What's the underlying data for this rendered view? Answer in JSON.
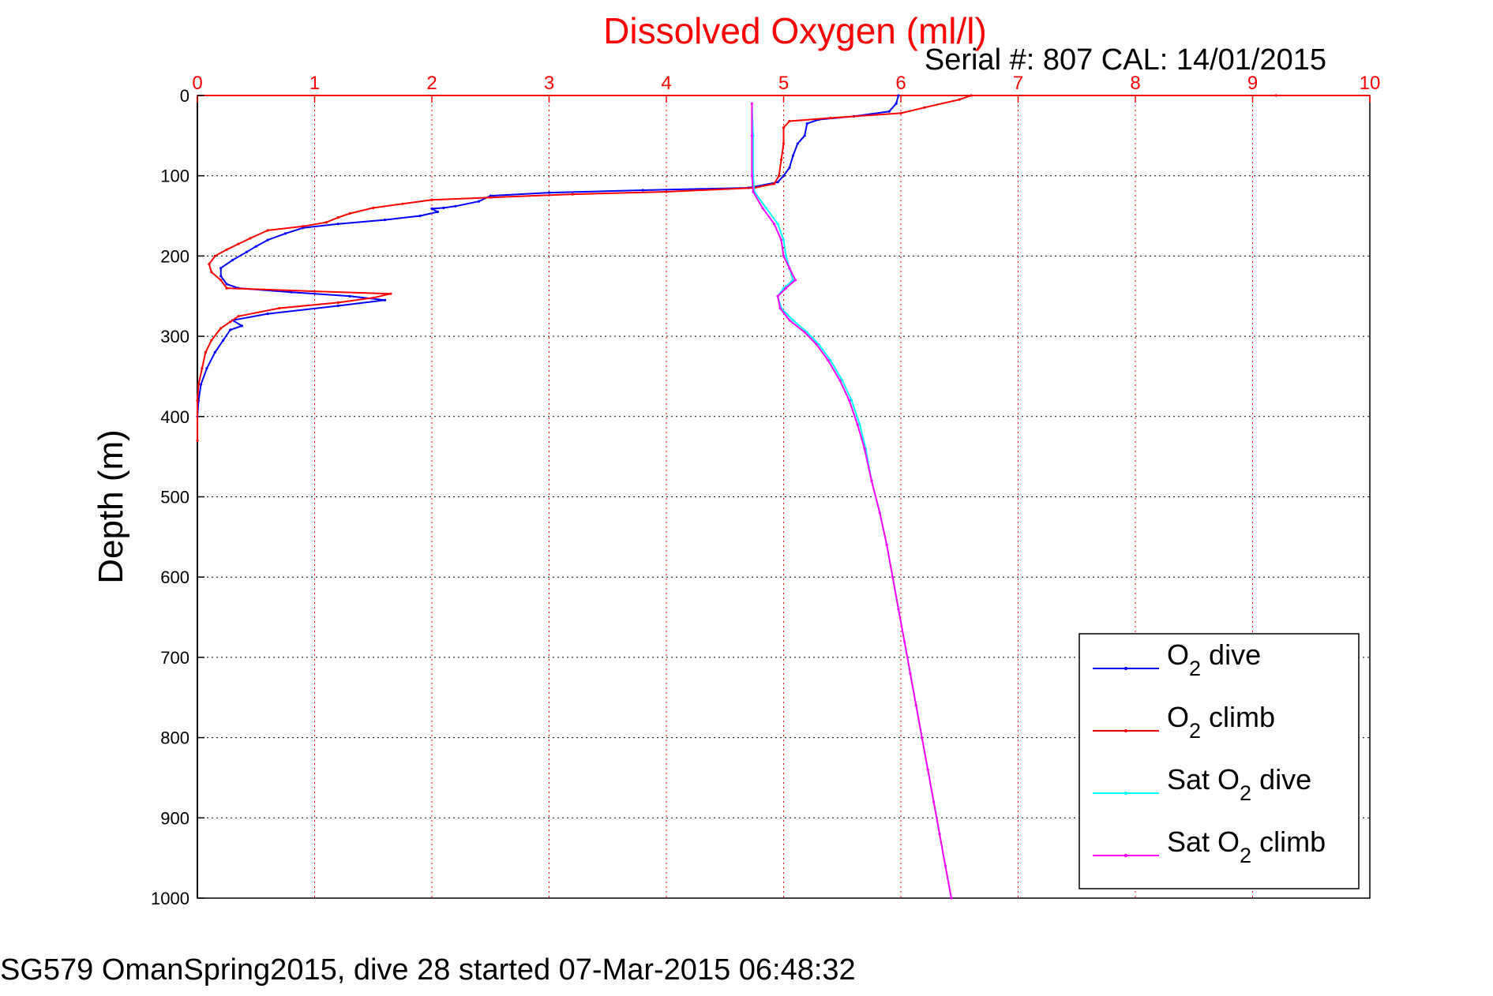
{
  "chart_data": {
    "type": "line",
    "title": "Dissolved Oxygen (ml/l)",
    "subtitle": "Serial #: 807  CAL: 14/01/2015",
    "ylabel": "Depth (m)",
    "xlim": [
      0,
      10
    ],
    "ylim": [
      0,
      1000
    ],
    "y_reversed": true,
    "x_ticks": [
      "0",
      "1",
      "2",
      "3",
      "4",
      "5",
      "6",
      "7",
      "8",
      "9",
      "10"
    ],
    "y_ticks": [
      "0",
      "100",
      "200",
      "300",
      "400",
      "500",
      "600",
      "700",
      "800",
      "900",
      "1000"
    ],
    "grid": true,
    "legend_position": "bottom-right",
    "colors": {
      "title": "#ff0000",
      "x_tick_labels": "#ff0000",
      "axis": "#ff0000"
    },
    "series": [
      {
        "name": "O2 dive",
        "legend": {
          "base": "O",
          "sub": "2",
          "rest": " dive"
        },
        "color": "#0000ff",
        "points": [
          [
            5.98,
            0
          ],
          [
            5.96,
            10
          ],
          [
            5.9,
            20
          ],
          [
            5.6,
            26
          ],
          [
            5.3,
            30
          ],
          [
            5.2,
            35
          ],
          [
            5.18,
            50
          ],
          [
            5.12,
            60
          ],
          [
            5.08,
            75
          ],
          [
            5.05,
            90
          ],
          [
            5.0,
            100
          ],
          [
            4.95,
            108
          ],
          [
            4.7,
            115
          ],
          [
            3.8,
            118
          ],
          [
            3.0,
            121
          ],
          [
            2.5,
            125
          ],
          [
            2.4,
            132
          ],
          [
            2.2,
            138
          ],
          [
            2.1,
            140
          ],
          [
            2.0,
            141
          ],
          [
            2.05,
            145
          ],
          [
            1.9,
            150
          ],
          [
            1.6,
            155
          ],
          [
            1.2,
            160
          ],
          [
            0.9,
            165
          ],
          [
            0.75,
            172
          ],
          [
            0.6,
            180
          ],
          [
            0.5,
            188
          ],
          [
            0.42,
            195
          ],
          [
            0.3,
            205
          ],
          [
            0.2,
            215
          ],
          [
            0.2,
            225
          ],
          [
            0.25,
            235
          ],
          [
            0.35,
            240
          ],
          [
            0.8,
            245
          ],
          [
            1.3,
            250
          ],
          [
            1.6,
            255
          ],
          [
            1.2,
            262
          ],
          [
            0.6,
            272
          ],
          [
            0.3,
            280
          ],
          [
            0.38,
            287
          ],
          [
            0.28,
            292
          ],
          [
            0.22,
            305
          ],
          [
            0.15,
            320
          ],
          [
            0.08,
            340
          ],
          [
            0.03,
            360
          ],
          [
            0.01,
            380
          ],
          [
            0.0,
            400
          ],
          [
            0.0,
            430
          ]
        ]
      },
      {
        "name": "O2 climb",
        "legend": {
          "base": "O",
          "sub": "2",
          "rest": " climb"
        },
        "color": "#ff0000",
        "points": [
          [
            9.2,
            0
          ],
          [
            6.6,
            0
          ],
          [
            6.5,
            5
          ],
          [
            6.2,
            15
          ],
          [
            6.0,
            22
          ],
          [
            5.4,
            28
          ],
          [
            5.05,
            32
          ],
          [
            5.0,
            40
          ],
          [
            5.0,
            60
          ],
          [
            4.98,
            80
          ],
          [
            4.96,
            100
          ],
          [
            4.92,
            110
          ],
          [
            4.75,
            115
          ],
          [
            4.0,
            120
          ],
          [
            3.2,
            123
          ],
          [
            2.5,
            127
          ],
          [
            2.0,
            130
          ],
          [
            1.75,
            135
          ],
          [
            1.5,
            140
          ],
          [
            1.3,
            147
          ],
          [
            1.2,
            152
          ],
          [
            1.1,
            158
          ],
          [
            0.9,
            163
          ],
          [
            0.6,
            168
          ],
          [
            0.45,
            178
          ],
          [
            0.35,
            185
          ],
          [
            0.25,
            192
          ],
          [
            0.15,
            200
          ],
          [
            0.1,
            210
          ],
          [
            0.12,
            220
          ],
          [
            0.2,
            230
          ],
          [
            0.25,
            240
          ],
          [
            1.0,
            244
          ],
          [
            1.65,
            247
          ],
          [
            1.5,
            252
          ],
          [
            1.2,
            258
          ],
          [
            0.7,
            265
          ],
          [
            0.35,
            275
          ],
          [
            0.28,
            282
          ],
          [
            0.2,
            290
          ],
          [
            0.12,
            305
          ],
          [
            0.07,
            320
          ],
          [
            0.04,
            340
          ],
          [
            0.01,
            360
          ],
          [
            0.0,
            380
          ],
          [
            0.0,
            430
          ]
        ]
      },
      {
        "name": "Sat O2 dive",
        "legend": {
          "base": "Sat O",
          "sub": "2",
          "rest": " dive"
        },
        "color": "#00ffff",
        "points": [
          [
            4.73,
            10
          ],
          [
            4.74,
            50
          ],
          [
            4.74,
            100
          ],
          [
            4.75,
            120
          ],
          [
            4.85,
            140
          ],
          [
            4.95,
            160
          ],
          [
            5.0,
            180
          ],
          [
            5.02,
            200
          ],
          [
            5.05,
            215
          ],
          [
            5.08,
            230
          ],
          [
            5.0,
            240
          ],
          [
            4.95,
            250
          ],
          [
            4.98,
            265
          ],
          [
            5.08,
            280
          ],
          [
            5.2,
            295
          ],
          [
            5.3,
            310
          ],
          [
            5.4,
            330
          ],
          [
            5.5,
            355
          ],
          [
            5.58,
            380
          ],
          [
            5.65,
            410
          ],
          [
            5.7,
            440
          ],
          [
            5.75,
            480
          ],
          [
            5.82,
            520
          ],
          [
            5.88,
            560
          ],
          [
            5.93,
            600
          ],
          [
            5.98,
            640
          ],
          [
            6.03,
            680
          ],
          [
            6.08,
            720
          ],
          [
            6.13,
            760
          ],
          [
            6.18,
            800
          ],
          [
            6.23,
            840
          ],
          [
            6.28,
            880
          ],
          [
            6.33,
            920
          ],
          [
            6.38,
            960
          ],
          [
            6.43,
            1000
          ]
        ]
      },
      {
        "name": "Sat O2 climb",
        "legend": {
          "base": "Sat O",
          "sub": "2",
          "rest": " climb"
        },
        "color": "#ff00ff",
        "points": [
          [
            4.73,
            10
          ],
          [
            4.73,
            50
          ],
          [
            4.73,
            100
          ],
          [
            4.74,
            120
          ],
          [
            4.82,
            140
          ],
          [
            4.92,
            160
          ],
          [
            4.98,
            180
          ],
          [
            5.0,
            200
          ],
          [
            5.05,
            215
          ],
          [
            5.1,
            230
          ],
          [
            5.02,
            240
          ],
          [
            4.95,
            250
          ],
          [
            4.97,
            265
          ],
          [
            5.05,
            280
          ],
          [
            5.18,
            295
          ],
          [
            5.28,
            310
          ],
          [
            5.38,
            330
          ],
          [
            5.48,
            355
          ],
          [
            5.56,
            380
          ],
          [
            5.63,
            410
          ],
          [
            5.69,
            440
          ],
          [
            5.75,
            480
          ],
          [
            5.82,
            520
          ],
          [
            5.88,
            560
          ],
          [
            5.93,
            600
          ],
          [
            5.98,
            640
          ],
          [
            6.03,
            680
          ],
          [
            6.08,
            720
          ],
          [
            6.13,
            760
          ],
          [
            6.18,
            800
          ],
          [
            6.23,
            840
          ],
          [
            6.28,
            880
          ],
          [
            6.33,
            920
          ],
          [
            6.38,
            960
          ],
          [
            6.43,
            1000
          ]
        ]
      }
    ]
  },
  "caption": "SG579 OmanSpring2015, dive 28 started 07-Mar-2015 06:48:32"
}
